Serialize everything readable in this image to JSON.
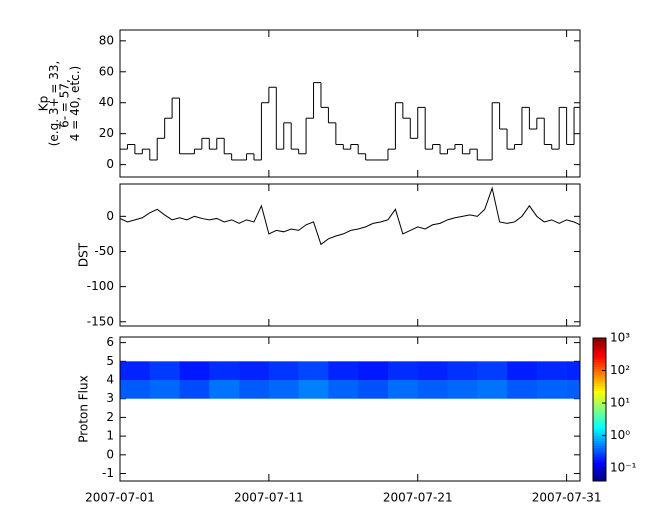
{
  "chart_data": [
    {
      "type": "line",
      "drawstyle": "steps-post",
      "color": "#000000",
      "ylabel": [
        "Kp",
        "(e.g. 3+ = 33,",
        "6- = 57,",
        "4 = 40, etc.)"
      ],
      "ylim": [
        -8,
        87
      ],
      "yticks": [
        0,
        20,
        40,
        60,
        80
      ],
      "x": [
        0,
        0.5,
        1,
        1.5,
        2,
        2.5,
        3,
        3.5,
        4,
        4.5,
        5,
        5.5,
        6,
        6.5,
        7,
        7.5,
        8,
        8.5,
        9,
        9.5,
        10,
        10.5,
        11,
        11.5,
        12,
        12.5,
        13,
        13.5,
        14,
        14.5,
        15,
        15.5,
        16,
        16.5,
        17,
        17.5,
        18,
        18.5,
        19,
        19.5,
        20,
        20.5,
        21,
        21.5,
        22,
        22.5,
        23,
        23.5,
        24,
        24.5,
        25,
        25.5,
        26,
        26.5,
        27,
        27.5,
        28,
        28.5,
        29,
        29.5,
        30,
        30.5
      ],
      "values": [
        10,
        13,
        7,
        10,
        3,
        17,
        30,
        43,
        7,
        7,
        10,
        17,
        10,
        17,
        7,
        3,
        3,
        7,
        3,
        40,
        50,
        10,
        27,
        10,
        7,
        30,
        53,
        37,
        27,
        13,
        10,
        13,
        7,
        3,
        3,
        3,
        10,
        40,
        30,
        17,
        37,
        10,
        13,
        7,
        10,
        13,
        7,
        10,
        3,
        3,
        40,
        23,
        10,
        13,
        37,
        23,
        30,
        13,
        10,
        37,
        13,
        37
      ]
    },
    {
      "type": "line",
      "color": "#000000",
      "ylabel": "DST",
      "ylim": [
        -156,
        46
      ],
      "yticks": [
        -150,
        -100,
        -50,
        0
      ],
      "x": [
        0,
        0.5,
        1,
        1.5,
        2,
        2.5,
        3,
        3.5,
        4,
        4.5,
        5,
        5.5,
        6,
        6.5,
        7,
        7.5,
        8,
        8.5,
        9,
        9.5,
        10,
        10.5,
        11,
        11.5,
        12,
        12.5,
        13,
        13.5,
        14,
        14.5,
        15,
        15.5,
        16,
        16.5,
        17,
        17.5,
        18,
        18.5,
        19,
        19.5,
        20,
        20.5,
        21,
        21.5,
        22,
        22.5,
        23,
        23.5,
        24,
        24.5,
        25,
        25.5,
        26,
        26.5,
        27,
        27.5,
        28,
        28.5,
        29,
        29.5,
        30,
        30.5,
        30.9
      ],
      "values": [
        -3,
        -8,
        -5,
        -2,
        5,
        10,
        2,
        -5,
        -2,
        -5,
        0,
        -3,
        -5,
        -3,
        -8,
        -5,
        -10,
        -5,
        -8,
        15,
        -25,
        -20,
        -22,
        -18,
        -20,
        -12,
        -8,
        -40,
        -32,
        -28,
        -25,
        -20,
        -18,
        -15,
        -10,
        -8,
        -5,
        10,
        -25,
        -20,
        -15,
        -18,
        -12,
        -10,
        -5,
        -2,
        0,
        2,
        0,
        10,
        40,
        -8,
        -10,
        -8,
        0,
        15,
        0,
        -8,
        -5,
        -10,
        -5,
        -8,
        -12
      ]
    },
    {
      "type": "heatmap",
      "ylabel": "Proton Flux",
      "ylim": [
        -1.4,
        6.3
      ],
      "yticks": [
        -1,
        0,
        1,
        2,
        3,
        4,
        5,
        6
      ],
      "xlim": [
        0,
        30.9
      ],
      "xticks": [
        {
          "value": 0,
          "label": "2007-07-01"
        },
        {
          "value": 10,
          "label": "2007-07-11"
        },
        {
          "value": 20,
          "label": "2007-07-21"
        },
        {
          "value": 30,
          "label": "2007-07-31"
        }
      ],
      "x_bins": [
        0,
        2,
        4,
        6,
        8,
        10,
        12,
        14,
        16,
        18,
        20,
        22,
        24,
        26,
        28,
        30,
        30.9
      ],
      "y_bins": [
        3,
        4,
        5
      ],
      "values": [
        [
          0.35,
          0.4,
          0.3,
          0.45,
          0.35,
          0.4,
          0.5,
          0.38,
          0.32,
          0.42,
          0.36,
          0.4,
          0.45,
          0.34,
          0.38,
          0.36
        ],
        [
          0.2,
          0.25,
          0.18,
          0.22,
          0.2,
          0.24,
          0.28,
          0.2,
          0.18,
          0.22,
          0.2,
          0.23,
          0.26,
          0.19,
          0.21,
          0.2
        ]
      ],
      "colorbar": {
        "colormap": "jet",
        "log": true,
        "lim": [
          0.04,
          1000
        ],
        "ticks": [
          {
            "value": 0.1,
            "label": "10⁻¹"
          },
          {
            "value": 1,
            "label": "10⁰"
          },
          {
            "value": 10,
            "label": "10¹"
          },
          {
            "value": 100,
            "label": "10²"
          },
          {
            "value": 1000,
            "label": "10³"
          }
        ]
      }
    }
  ]
}
